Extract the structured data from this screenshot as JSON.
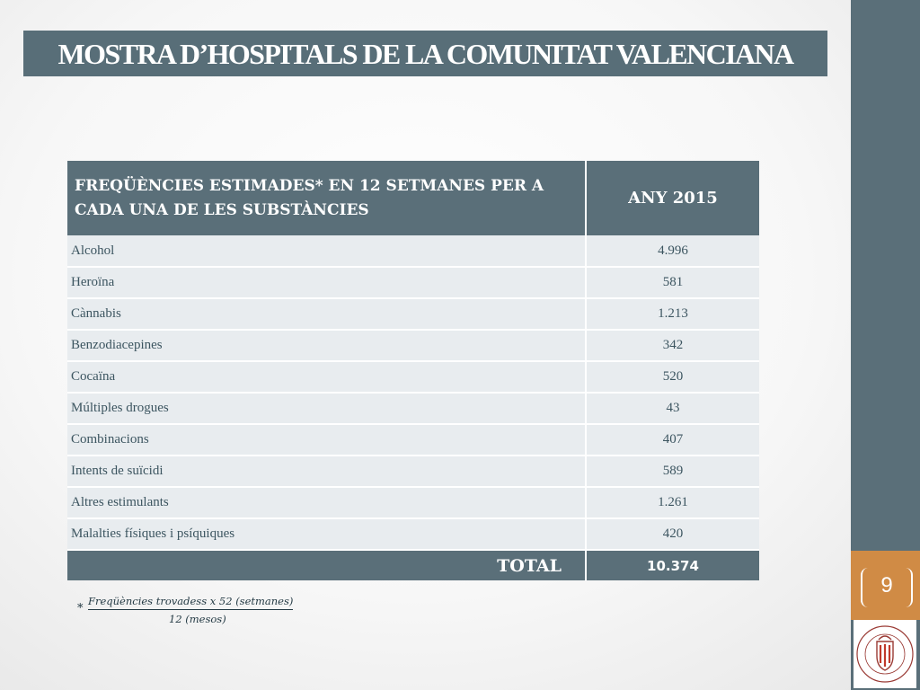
{
  "slide": {
    "title": "MOSTRA D’HOSPITALS DE LA COMUNITAT VALENCIANA",
    "page_number": "9"
  },
  "table": {
    "headers": {
      "col1": "FREQÜÈNCIES ESTIMADES* EN 12 SETMANES PER A CADA UNA DE LES SUBSTÀNCIES",
      "col2": "ANY 2015"
    },
    "rows": [
      {
        "label": "Alcohol",
        "value": "4.996"
      },
      {
        "label": "Heroïna",
        "value": "581"
      },
      {
        "label": "Cànnabis",
        "value": "1.213"
      },
      {
        "label": "Benzodiacepines",
        "value": "342"
      },
      {
        "label": "Cocaïna",
        "value": "520"
      },
      {
        "label": "Múltiples drogues",
        "value": "43"
      },
      {
        "label": "Combinacions",
        "value": "407"
      },
      {
        "label": "Intents de suïcidi",
        "value": "589"
      },
      {
        "label": "Altres estimulants",
        "value": "1.261"
      },
      {
        "label": "Malalties físiques i psíquiques",
        "value": "420"
      }
    ],
    "total": {
      "label": "TOTAL",
      "value": "10.374"
    }
  },
  "footnote": {
    "marker": "*",
    "numerator": "Freqüències trovadess x 52 (setmanes)",
    "denominator": "12 (mesos)"
  },
  "logo": {
    "icon": "university-seal-icon",
    "text": "UNIVERSITAT DE VALÈNCIA"
  },
  "colors": {
    "title_bar": "#586e78",
    "header_fill": "#5a6f79",
    "row_fill": "#e8ecef",
    "accent_tab": "#d08b45",
    "right_bar": "#5a6f79"
  }
}
